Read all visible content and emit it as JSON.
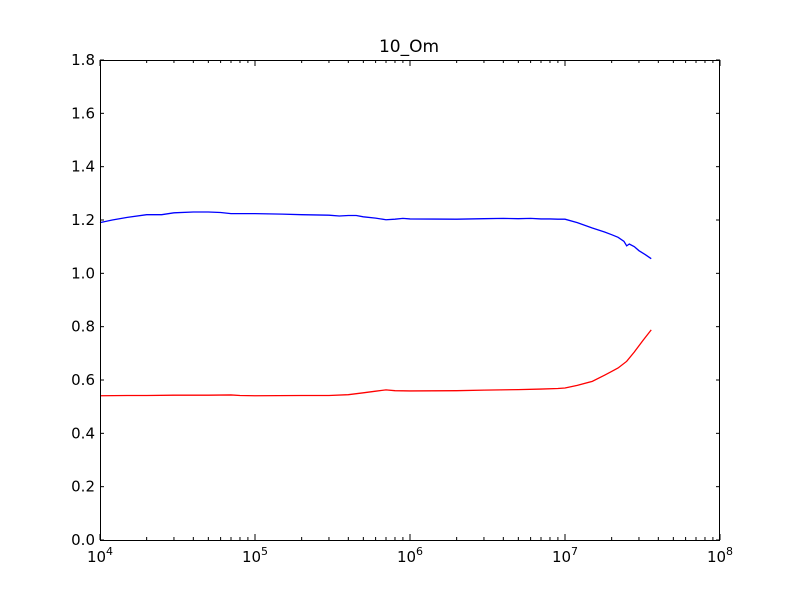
{
  "chart_data": {
    "type": "line",
    "title": "10_Om",
    "xlabel": "",
    "ylabel": "",
    "x_scale": "log",
    "xlim": [
      10000,
      100000000
    ],
    "ylim": [
      0.0,
      1.8
    ],
    "grid": false,
    "x_ticks": [
      {
        "value": 10000,
        "base": "10",
        "exp": "4"
      },
      {
        "value": 100000,
        "base": "10",
        "exp": "5"
      },
      {
        "value": 1000000,
        "base": "10",
        "exp": "6"
      },
      {
        "value": 10000000,
        "base": "10",
        "exp": "7"
      },
      {
        "value": 100000000,
        "base": "10",
        "exp": "8"
      }
    ],
    "y_ticks": [
      "0.0",
      "0.2",
      "0.4",
      "0.6",
      "0.8",
      "1.0",
      "1.2",
      "1.4",
      "1.6",
      "1.8"
    ],
    "series": [
      {
        "color": "#0000ff",
        "points": [
          [
            10000,
            1.19
          ],
          [
            12000,
            1.2
          ],
          [
            15000,
            1.21
          ],
          [
            20000,
            1.22
          ],
          [
            25000,
            1.22
          ],
          [
            30000,
            1.227
          ],
          [
            40000,
            1.23
          ],
          [
            50000,
            1.23
          ],
          [
            60000,
            1.228
          ],
          [
            70000,
            1.224
          ],
          [
            80000,
            1.224
          ],
          [
            100000,
            1.224
          ],
          [
            150000,
            1.222
          ],
          [
            200000,
            1.22
          ],
          [
            300000,
            1.218
          ],
          [
            350000,
            1.215
          ],
          [
            400000,
            1.217
          ],
          [
            450000,
            1.217
          ],
          [
            500000,
            1.212
          ],
          [
            600000,
            1.207
          ],
          [
            700000,
            1.201
          ],
          [
            800000,
            1.203
          ],
          [
            900000,
            1.206
          ],
          [
            1000000,
            1.204
          ],
          [
            2000000,
            1.203
          ],
          [
            3000000,
            1.205
          ],
          [
            4000000,
            1.206
          ],
          [
            5000000,
            1.205
          ],
          [
            6000000,
            1.206
          ],
          [
            7000000,
            1.204
          ],
          [
            8000000,
            1.204
          ],
          [
            9000000,
            1.203
          ],
          [
            10000000,
            1.203
          ],
          [
            12000000,
            1.19
          ],
          [
            15000000,
            1.17
          ],
          [
            18000000,
            1.155
          ],
          [
            20000000,
            1.145
          ],
          [
            22000000,
            1.135
          ],
          [
            24000000,
            1.12
          ],
          [
            25000000,
            1.103
          ],
          [
            26000000,
            1.11
          ],
          [
            28000000,
            1.1
          ],
          [
            30000000,
            1.085
          ],
          [
            33000000,
            1.07
          ],
          [
            36000000,
            1.055
          ]
        ]
      },
      {
        "color": "#ff0000",
        "points": [
          [
            10000,
            0.541
          ],
          [
            15000,
            0.542
          ],
          [
            20000,
            0.542
          ],
          [
            30000,
            0.543
          ],
          [
            50000,
            0.543
          ],
          [
            70000,
            0.544
          ],
          [
            80000,
            0.542
          ],
          [
            100000,
            0.541
          ],
          [
            200000,
            0.542
          ],
          [
            300000,
            0.542
          ],
          [
            400000,
            0.545
          ],
          [
            500000,
            0.552
          ],
          [
            600000,
            0.558
          ],
          [
            700000,
            0.563
          ],
          [
            800000,
            0.56
          ],
          [
            1000000,
            0.559
          ],
          [
            2000000,
            0.56
          ],
          [
            3000000,
            0.562
          ],
          [
            5000000,
            0.564
          ],
          [
            7000000,
            0.566
          ],
          [
            9000000,
            0.568
          ],
          [
            10000000,
            0.57
          ],
          [
            12000000,
            0.58
          ],
          [
            15000000,
            0.595
          ],
          [
            18000000,
            0.618
          ],
          [
            20000000,
            0.632
          ],
          [
            22000000,
            0.645
          ],
          [
            25000000,
            0.67
          ],
          [
            28000000,
            0.705
          ],
          [
            32000000,
            0.75
          ],
          [
            36000000,
            0.788
          ]
        ]
      }
    ]
  }
}
